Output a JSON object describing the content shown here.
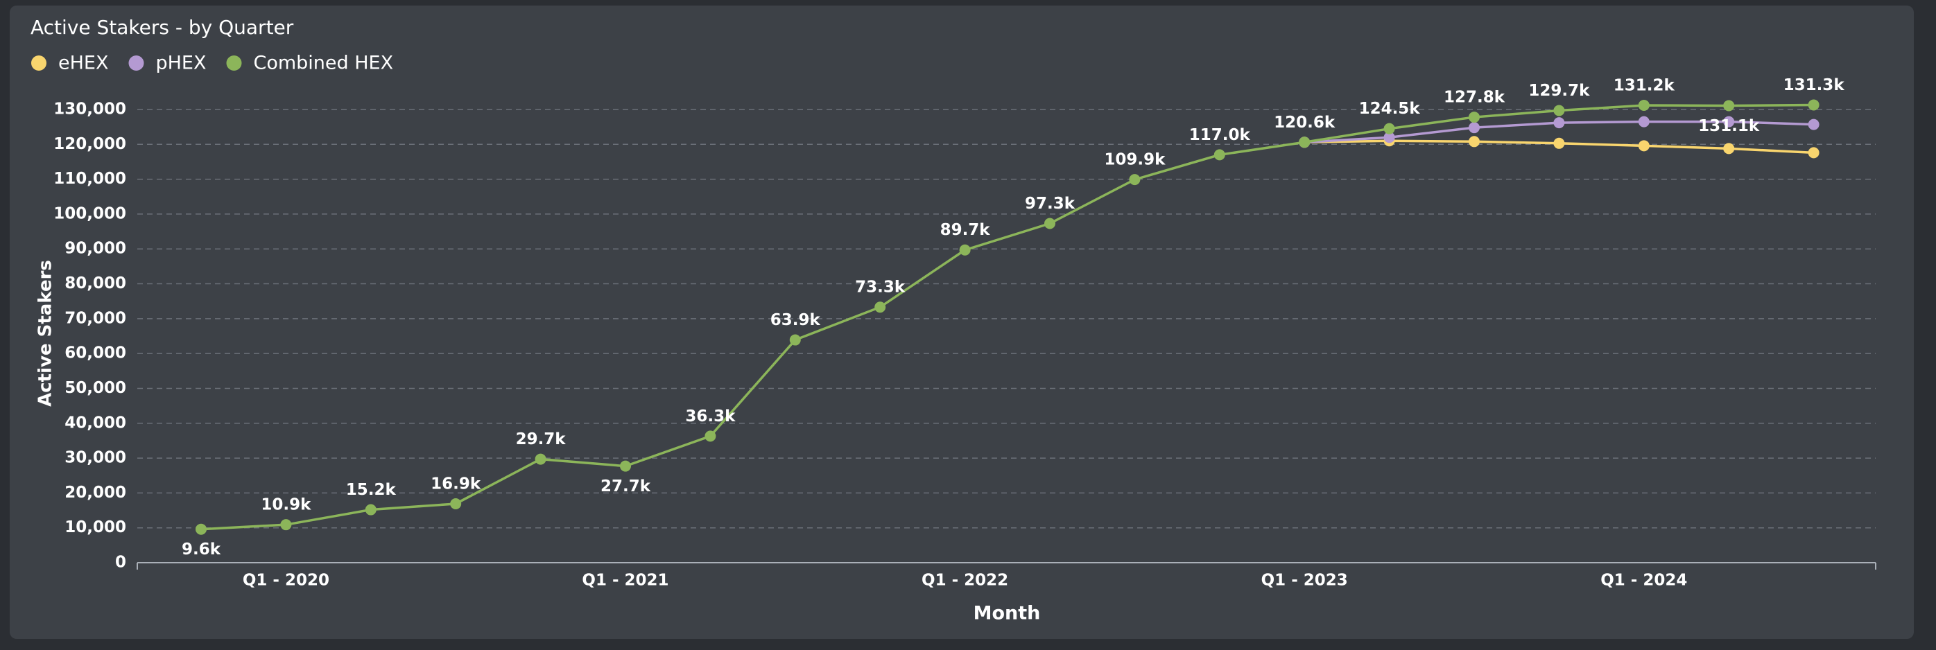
{
  "chart_data": {
    "type": "line",
    "title": "Active Stakers - by Quarter",
    "x_label": "Month",
    "y_label": "Active Stakers",
    "categories": [
      null,
      "Q1 - 2020",
      null,
      null,
      null,
      "Q1 - 2021",
      null,
      null,
      null,
      "Q1 - 2022",
      null,
      null,
      null,
      "Q1 - 2023",
      null,
      null,
      null,
      "Q1 - 2024",
      null,
      null
    ],
    "series": [
      {
        "name": "eHEX",
        "color": "#f9d56e",
        "values": [
          null,
          null,
          null,
          null,
          null,
          null,
          null,
          null,
          null,
          null,
          null,
          null,
          null,
          120600,
          121000,
          120800,
          120300,
          119600,
          118800,
          117600
        ]
      },
      {
        "name": "pHEX",
        "color": "#b49ad2",
        "values": [
          null,
          null,
          null,
          null,
          null,
          null,
          null,
          null,
          null,
          null,
          null,
          null,
          null,
          120600,
          122000,
          124800,
          126200,
          126500,
          126500,
          125700
        ]
      },
      {
        "name": "Combined HEX",
        "color": "#8cb55a",
        "values": [
          9600,
          10900,
          15200,
          16900,
          29700,
          27700,
          36300,
          63900,
          73300,
          89700,
          97300,
          109900,
          117000,
          120600,
          124500,
          127800,
          129700,
          131200,
          131100,
          131300
        ],
        "value_labels": [
          "9.6k",
          "10.9k",
          "15.2k",
          "16.9k",
          "29.7k",
          "27.7k",
          "36.3k",
          "63.9k",
          "73.3k",
          "89.7k",
          "97.3k",
          "109.9k",
          "117.0k",
          "120.6k",
          "124.5k",
          "127.8k",
          "129.7k",
          "131.2k",
          "131.1k",
          "131.3k"
        ]
      }
    ],
    "ylim": [
      0,
      130000
    ],
    "yticks": [
      0,
      {
        "value": 10000,
        "label": "10,000"
      },
      {
        "value": 20000,
        "label": "20,000"
      },
      {
        "value": 30000,
        "label": "30,000"
      },
      {
        "value": 40000,
        "label": "40,000"
      },
      {
        "value": 50000,
        "label": "50,000"
      },
      {
        "value": 60000,
        "label": "60,000"
      },
      {
        "value": 70000,
        "label": "70,000"
      },
      {
        "value": 80000,
        "label": "80,000"
      },
      {
        "value": 90000,
        "label": "90,000"
      },
      {
        "value": 100000,
        "label": "100,000"
      },
      {
        "value": 110000,
        "label": "110,000"
      },
      {
        "value": 120000,
        "label": "120,000"
      },
      {
        "value": 130000,
        "label": "130,000"
      }
    ],
    "grid": true,
    "legend": "top-left"
  }
}
